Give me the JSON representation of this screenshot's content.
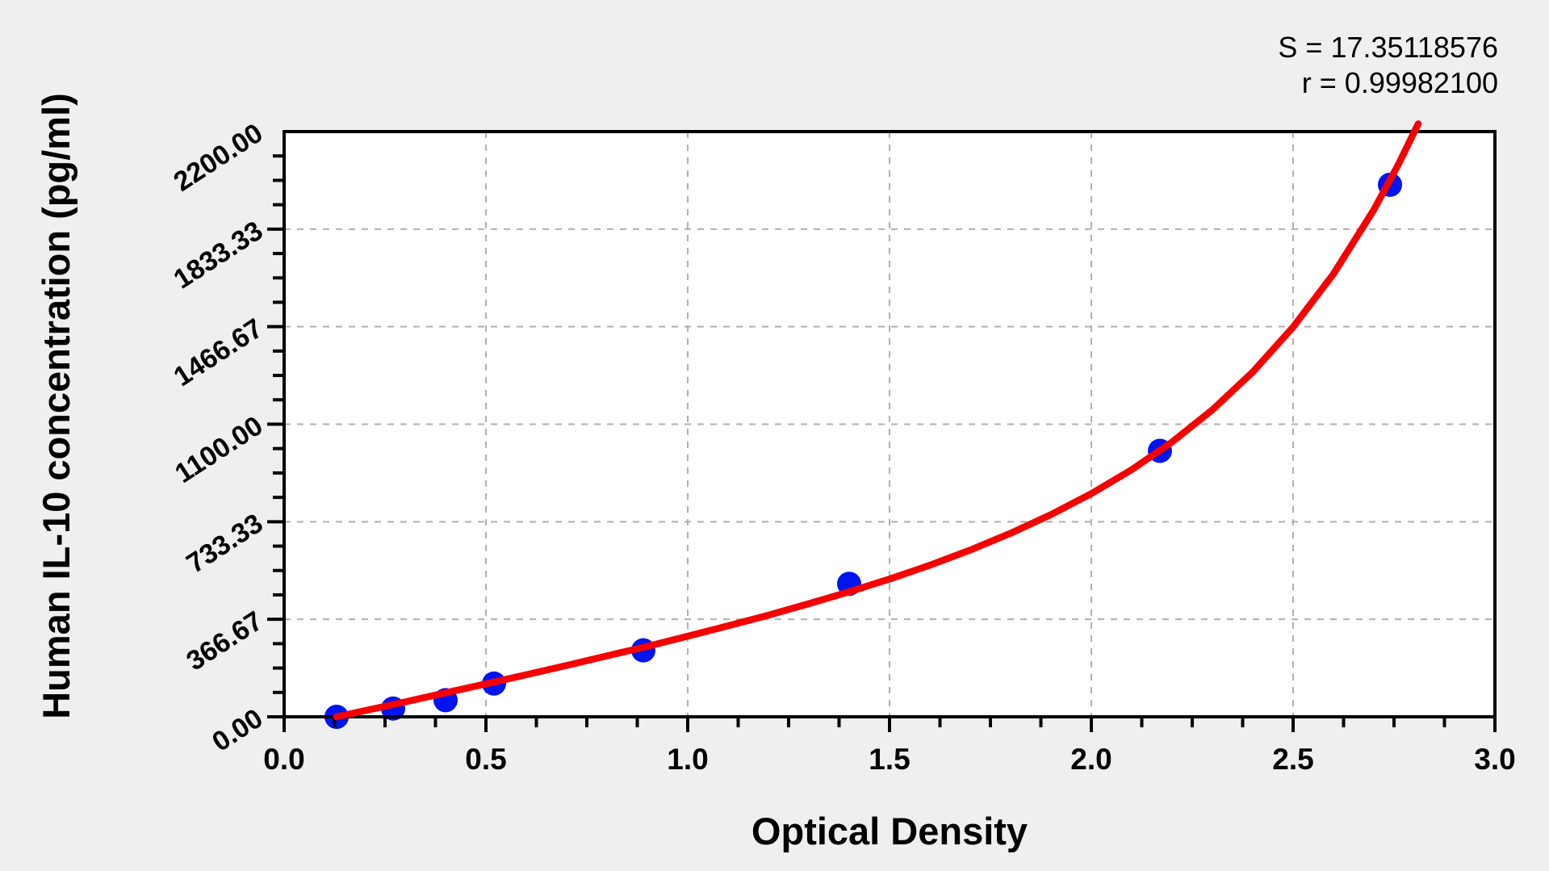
{
  "chart_data": {
    "type": "scatter",
    "title": "",
    "xlabel": "Optical Density",
    "ylabel": "Human IL-10 concentration (pg/ml)",
    "xlim": [
      0.0,
      3.0
    ],
    "ylim": [
      0.0,
      2200.0
    ],
    "x_tick_labels": [
      "0.0",
      "0.5",
      "1.0",
      "1.5",
      "2.0",
      "2.5",
      "3.0"
    ],
    "x_tick_values": [
      0.0,
      0.5,
      1.0,
      1.5,
      2.0,
      2.5,
      3.0
    ],
    "y_tick_labels": [
      "0.00",
      "366.67",
      "733.33",
      "1100.00",
      "1466.67",
      "1833.33",
      "2200.00"
    ],
    "y_tick_values": [
      0.0,
      366.67,
      733.33,
      1100.0,
      1466.67,
      1833.33,
      2200.0
    ],
    "minor_tick_divisions": 4,
    "grid": "dashed gray lines at major ticks, full plot frame box, ticks outside on left and bottom axes only",
    "legend": "none",
    "points": {
      "name": "standards",
      "optical_density": [
        0.13,
        0.27,
        0.4,
        0.52,
        0.89,
        1.4,
        2.17,
        2.74
      ],
      "concentration_pg_ml": [
        0,
        31.25,
        62.5,
        125,
        250,
        500,
        1000,
        2000
      ]
    },
    "fit_curve": {
      "name": "standard-curve-fit",
      "samples_x": [
        0.13,
        0.2,
        0.3,
        0.4,
        0.5,
        0.6,
        0.7,
        0.8,
        0.9,
        1.0,
        1.1,
        1.2,
        1.3,
        1.4,
        1.5,
        1.6,
        1.7,
        1.8,
        1.9,
        2.0,
        2.1,
        2.2,
        2.3,
        2.4,
        2.5,
        2.6,
        2.7,
        2.76,
        2.81
      ],
      "samples_y": [
        0,
        23,
        56,
        90,
        124,
        158,
        193,
        229,
        265,
        303,
        342,
        382,
        425,
        470,
        518,
        570,
        627,
        690,
        760,
        839,
        929,
        1033,
        1154,
        1296,
        1465,
        1665,
        1906,
        2074,
        2229
      ]
    },
    "annotations": {
      "s_label": "S = 17.35118576",
      "r_label": "r = 0.99982100"
    },
    "colors": {
      "point": "#0014f0",
      "curve": "#f80000",
      "grid": "#b0b0b0",
      "axis": "#000000",
      "plot_bg": "#ffffff",
      "page_bg": "#efefef",
      "text": "#000000"
    }
  }
}
